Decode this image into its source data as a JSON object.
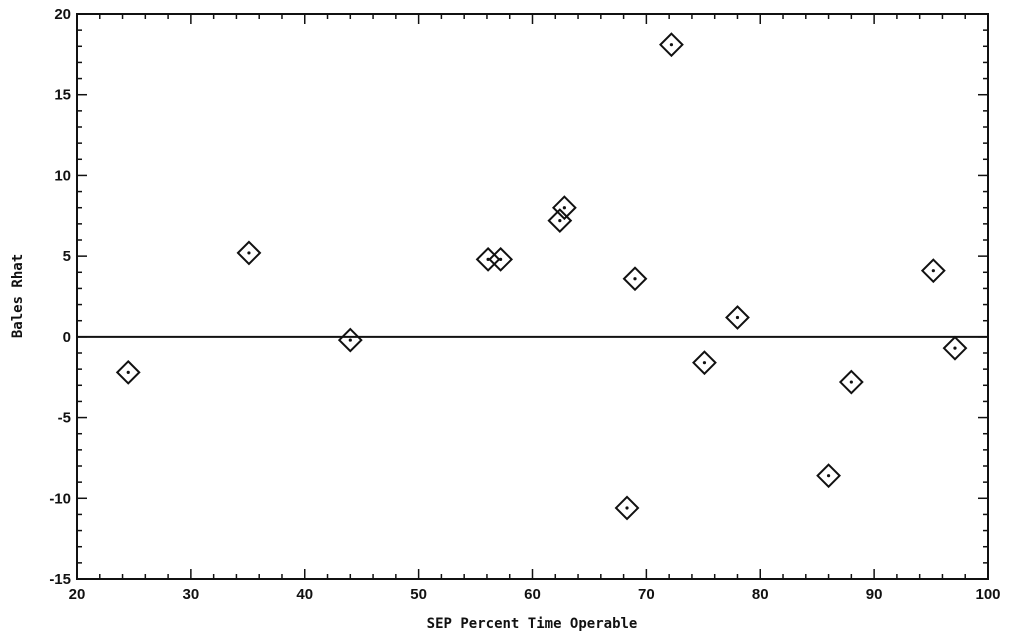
{
  "chart_data": {
    "type": "scatter",
    "title": "",
    "xlabel": "SEP Percent Time Operable",
    "ylabel": "Bales Rhat",
    "xlim": [
      20,
      100
    ],
    "ylim": [
      -15,
      20
    ],
    "x_ticks": [
      20,
      30,
      40,
      50,
      60,
      70,
      80,
      90,
      100
    ],
    "y_ticks": [
      -15,
      -10,
      -5,
      0,
      5,
      10,
      15,
      20
    ],
    "reference_line_y": 0,
    "grid": false,
    "marker": "diamond-with-center-dot",
    "points": [
      {
        "x": 24.5,
        "y": -2.2
      },
      {
        "x": 35.1,
        "y": 5.2
      },
      {
        "x": 44.0,
        "y": -0.2
      },
      {
        "x": 56.1,
        "y": 4.8
      },
      {
        "x": 57.2,
        "y": 4.8
      },
      {
        "x": 62.4,
        "y": 7.2
      },
      {
        "x": 62.8,
        "y": 8.0
      },
      {
        "x": 68.3,
        "y": -10.6
      },
      {
        "x": 69.0,
        "y": 3.6
      },
      {
        "x": 72.2,
        "y": 18.1
      },
      {
        "x": 75.1,
        "y": -1.6
      },
      {
        "x": 78.0,
        "y": 1.2
      },
      {
        "x": 86.0,
        "y": -8.6
      },
      {
        "x": 88.0,
        "y": -2.8
      },
      {
        "x": 95.2,
        "y": 4.1
      },
      {
        "x": 97.1,
        "y": -0.7
      }
    ]
  }
}
